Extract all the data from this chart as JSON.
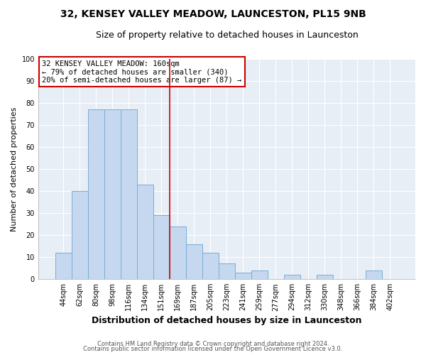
{
  "title": "32, KENSEY VALLEY MEADOW, LAUNCESTON, PL15 9NB",
  "subtitle": "Size of property relative to detached houses in Launceston",
  "xlabel": "Distribution of detached houses by size in Launceston",
  "ylabel": "Number of detached properties",
  "bar_labels": [
    "44sqm",
    "62sqm",
    "80sqm",
    "98sqm",
    "116sqm",
    "134sqm",
    "151sqm",
    "169sqm",
    "187sqm",
    "205sqm",
    "223sqm",
    "241sqm",
    "259sqm",
    "277sqm",
    "294sqm",
    "312sqm",
    "330sqm",
    "348sqm",
    "366sqm",
    "384sqm",
    "402sqm"
  ],
  "bar_values": [
    12,
    40,
    77,
    77,
    77,
    43,
    29,
    24,
    16,
    12,
    7,
    3,
    4,
    0,
    2,
    0,
    2,
    0,
    0,
    4,
    0
  ],
  "bar_color": "#c5d8ef",
  "bar_edge_color": "#7aadd4",
  "vline_x": 6.5,
  "vline_color": "#cc0000",
  "annotation_text": "32 KENSEY VALLEY MEADOW: 160sqm\n← 79% of detached houses are smaller (340)\n20% of semi-detached houses are larger (87) →",
  "annotation_box_color": "#ffffff",
  "annotation_box_edge": "#cc0000",
  "ylim": [
    0,
    100
  ],
  "yticks": [
    0,
    10,
    20,
    30,
    40,
    50,
    60,
    70,
    80,
    90,
    100
  ],
  "fig_background_color": "#ffffff",
  "plot_bg_color": "#e8eef6",
  "grid_color": "#ffffff",
  "footer1": "Contains HM Land Registry data © Crown copyright and database right 2024.",
  "footer2": "Contains public sector information licensed under the Open Government Licence v3.0.",
  "title_fontsize": 10,
  "subtitle_fontsize": 9,
  "xlabel_fontsize": 9,
  "ylabel_fontsize": 8,
  "tick_fontsize": 7,
  "annotation_fontsize": 7.5,
  "footer_fontsize": 6
}
